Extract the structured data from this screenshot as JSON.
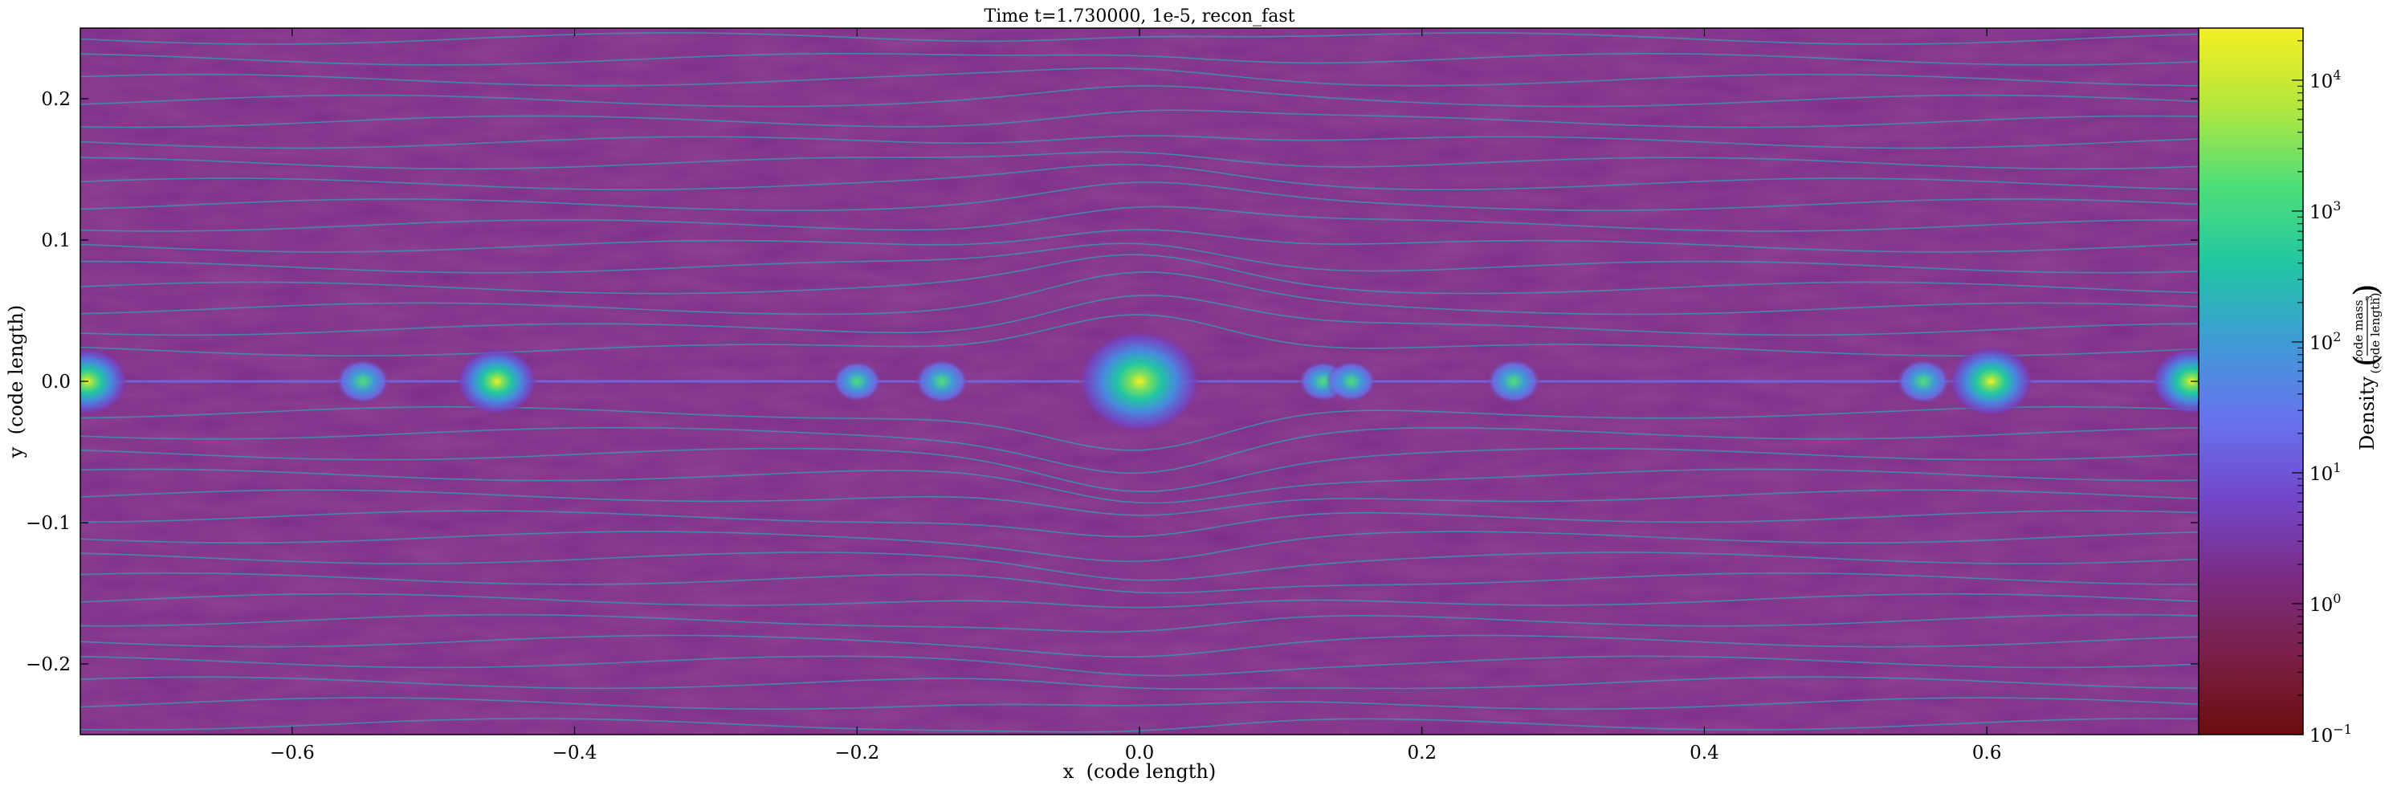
{
  "chart_data": {
    "type": "heatmap",
    "title": "Time t=1.730000, 1e-5, recon_fast",
    "xlabel": "x  (code length)",
    "ylabel": "y  (code length)",
    "xlim": [
      -0.75,
      0.75
    ],
    "ylim": [
      -0.25,
      0.25
    ],
    "x_ticks": [
      -0.6,
      -0.4,
      -0.2,
      0.0,
      0.2,
      0.4,
      0.6
    ],
    "x_tick_labels": [
      "−0.6",
      "−0.4",
      "−0.2",
      "0.0",
      "0.2",
      "0.4",
      "0.6"
    ],
    "y_ticks": [
      0.2,
      0.1,
      0.0,
      -0.1,
      -0.2
    ],
    "y_tick_labels": [
      "0.2",
      "0.1",
      "0.0",
      "−0.1",
      "−0.2"
    ],
    "colorbar": {
      "label": "Density",
      "unit_numerator": "code mass",
      "unit_denominator": "(code length)",
      "unit_denominator_power": "3",
      "scale": "log",
      "range": [
        0.1,
        25000
      ],
      "ticks": [
        0.1,
        1,
        10,
        100,
        1000,
        10000
      ],
      "tick_bases": [
        "10",
        "10",
        "10",
        "10",
        "10",
        "10"
      ],
      "tick_exponents": [
        "−1",
        "0",
        "1",
        "2",
        "3",
        "4"
      ],
      "colormap": [
        "#6b0d0d",
        "#7a1f47",
        "#7b2c82",
        "#7247c9",
        "#6872ee",
        "#3f9bd6",
        "#21c6a2",
        "#4fdf78",
        "#b4e63d",
        "#f5ef22"
      ]
    },
    "background_density": 1.0,
    "background_color": "#7d2d86",
    "streamline_color": "#2fa3b3",
    "clumps": [
      {
        "x": 0.0,
        "y": 0.0,
        "density": 12000
      },
      {
        "x": -0.455,
        "y": 0.0,
        "density": 300
      },
      {
        "x": 0.603,
        "y": 0.0,
        "density": 400
      },
      {
        "x": -0.745,
        "y": 0.0,
        "density": 300
      },
      {
        "x": 0.745,
        "y": 0.0,
        "density": 300
      },
      {
        "x": -0.55,
        "y": 0.0,
        "density": 30
      },
      {
        "x": -0.14,
        "y": 0.0,
        "density": 30
      },
      {
        "x": 0.265,
        "y": 0.0,
        "density": 30
      },
      {
        "x": 0.555,
        "y": 0.0,
        "density": 30
      },
      {
        "x": -0.2,
        "y": 0.0,
        "density": 20
      },
      {
        "x": 0.13,
        "y": 0.0,
        "density": 20
      },
      {
        "x": 0.15,
        "y": 0.0,
        "density": 20
      }
    ]
  }
}
